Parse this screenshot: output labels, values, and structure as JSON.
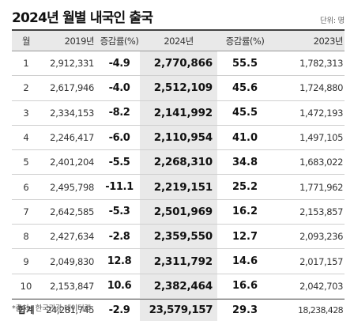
{
  "title": "2024년 월별 내국인 출국",
  "unit": "단위: 명",
  "headers": [
    "월",
    "2019년",
    "증감률(%)",
    "2024년",
    "증감률(%)",
    "2023년"
  ],
  "rows": [
    {
      "month": "1",
      "y2019": "2,912,331",
      "rate_a": "-4.9",
      "y2024": "2,770,866",
      "rate_b": "55.5",
      "y2023": "1,782,313"
    },
    {
      "month": "2",
      "y2019": "2,617,946",
      "rate_a": "-4.0",
      "y2024": "2,512,109",
      "rate_b": "45.6",
      "y2023": "1,724,880"
    },
    {
      "month": "3",
      "y2019": "2,334,153",
      "rate_a": "-8.2",
      "y2024": "2,141,992",
      "rate_b": "45.5",
      "y2023": "1,472,193"
    },
    {
      "month": "4",
      "y2019": "2,246,417",
      "rate_a": "-6.0",
      "y2024": "2,110,954",
      "rate_b": "41.0",
      "y2023": "1,497,105"
    },
    {
      "month": "5",
      "y2019": "2,401,204",
      "rate_a": "-5.5",
      "y2024": "2,268,310",
      "rate_b": "34.8",
      "y2023": "1,683,022"
    },
    {
      "month": "6",
      "y2019": "2,495,798",
      "rate_a": "-11.1",
      "y2024": "2,219,151",
      "rate_b": "25.2",
      "y2023": "1,771,962"
    },
    {
      "month": "7",
      "y2019": "2,642,585",
      "rate_a": "-5.3",
      "y2024": "2,501,969",
      "rate_b": "16.2",
      "y2023": "2,153,857"
    },
    {
      "month": "8",
      "y2019": "2,427,634",
      "rate_a": "-2.8",
      "y2024": "2,359,550",
      "rate_b": "12.7",
      "y2023": "2,093,236"
    },
    {
      "month": "9",
      "y2019": "2,049,830",
      "rate_a": "12.8",
      "y2024": "2,311,792",
      "rate_b": "14.6",
      "y2023": "2,017,157"
    },
    {
      "month": "10",
      "y2019": "2,153,847",
      "rate_a": "10.6",
      "y2024": "2,382,464",
      "rate_b": "16.6",
      "y2023": "2,042,703"
    }
  ],
  "total": {
    "month": "합계",
    "y2019": "24,281,745",
    "rate_a": "-2.9",
    "y2024": "23,579,157",
    "rate_b": "29.3",
    "y2023": "18,238,428"
  },
  "source": "*출처 : 한국관광 데이터랩",
  "colors": {
    "header_bg": "#e9e9e9",
    "shaded_column_bg": "#e9e9e9",
    "rule": "#444444"
  }
}
